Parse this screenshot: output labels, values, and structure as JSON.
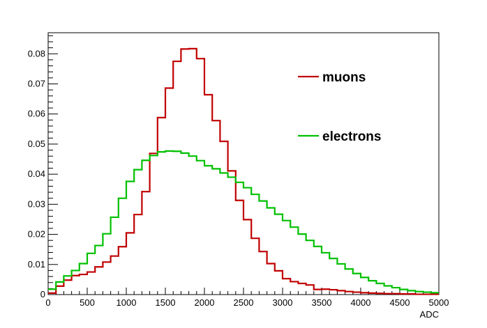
{
  "chart_data": {
    "type": "line",
    "style": "step-histogram",
    "title": "",
    "xlabel": "ADC",
    "ylabel": "",
    "xlim": [
      0,
      5000
    ],
    "ylim": [
      0,
      0.087
    ],
    "bin_width": 100,
    "x_ticks": [
      0,
      500,
      1000,
      1500,
      2000,
      2500,
      3000,
      3500,
      4000,
      4500,
      5000
    ],
    "x_tick_labels": [
      "0",
      "500",
      "1000",
      "1500",
      "2000",
      "2500",
      "3000",
      "3500",
      "4000",
      "4500",
      "5000"
    ],
    "y_ticks": [
      0,
      0.01,
      0.02,
      0.03,
      0.04,
      0.05,
      0.06,
      0.07,
      0.08
    ],
    "y_tick_labels": [
      "0",
      "0.01",
      "0.02",
      "0.03",
      "0.04",
      "0.05",
      "0.06",
      "0.07",
      "0.08"
    ],
    "grid": false,
    "legend_position": "top-right",
    "x": [
      0,
      100,
      200,
      300,
      400,
      500,
      600,
      700,
      800,
      900,
      1000,
      1100,
      1200,
      1300,
      1400,
      1500,
      1600,
      1700,
      1800,
      1900,
      2000,
      2100,
      2200,
      2300,
      2400,
      2500,
      2600,
      2700,
      2800,
      2900,
      3000,
      3100,
      3200,
      3300,
      3400,
      3500,
      3600,
      3700,
      3800,
      3900,
      4000,
      4100,
      4200,
      4300,
      4400,
      4500,
      4600,
      4700,
      4800,
      4900
    ],
    "series": [
      {
        "name": "muons",
        "color": "#c00000",
        "values": [
          0.0005,
          0.0028,
          0.0048,
          0.0063,
          0.0067,
          0.0075,
          0.0092,
          0.0108,
          0.0128,
          0.0159,
          0.0205,
          0.0266,
          0.0342,
          0.0469,
          0.0588,
          0.0686,
          0.0775,
          0.0816,
          0.0817,
          0.0784,
          0.0664,
          0.0578,
          0.0509,
          0.0411,
          0.0313,
          0.0249,
          0.0187,
          0.0143,
          0.0103,
          0.0079,
          0.0053,
          0.0043,
          0.0037,
          0.0032,
          0.0017,
          0.0018,
          0.0016,
          0.0013,
          0.001,
          0.0008,
          0.0006,
          0.0005,
          0.0004,
          0.0003,
          0.0003,
          0.0002,
          0.0002,
          0.0001,
          0.0001,
          0.0001
        ]
      },
      {
        "name": "electrons",
        "color": "#00c000",
        "values": [
          0.0018,
          0.0042,
          0.0062,
          0.008,
          0.0103,
          0.0137,
          0.0163,
          0.0202,
          0.0257,
          0.032,
          0.0376,
          0.0415,
          0.0446,
          0.0462,
          0.0474,
          0.0477,
          0.0476,
          0.047,
          0.046,
          0.0445,
          0.0428,
          0.0418,
          0.0404,
          0.039,
          0.0373,
          0.0355,
          0.0333,
          0.0311,
          0.0288,
          0.0267,
          0.0246,
          0.0224,
          0.0201,
          0.018,
          0.016,
          0.0139,
          0.012,
          0.0102,
          0.0085,
          0.007,
          0.0057,
          0.0046,
          0.0037,
          0.0029,
          0.0023,
          0.0017,
          0.0013,
          0.001,
          0.0008,
          0.0006
        ]
      }
    ]
  }
}
